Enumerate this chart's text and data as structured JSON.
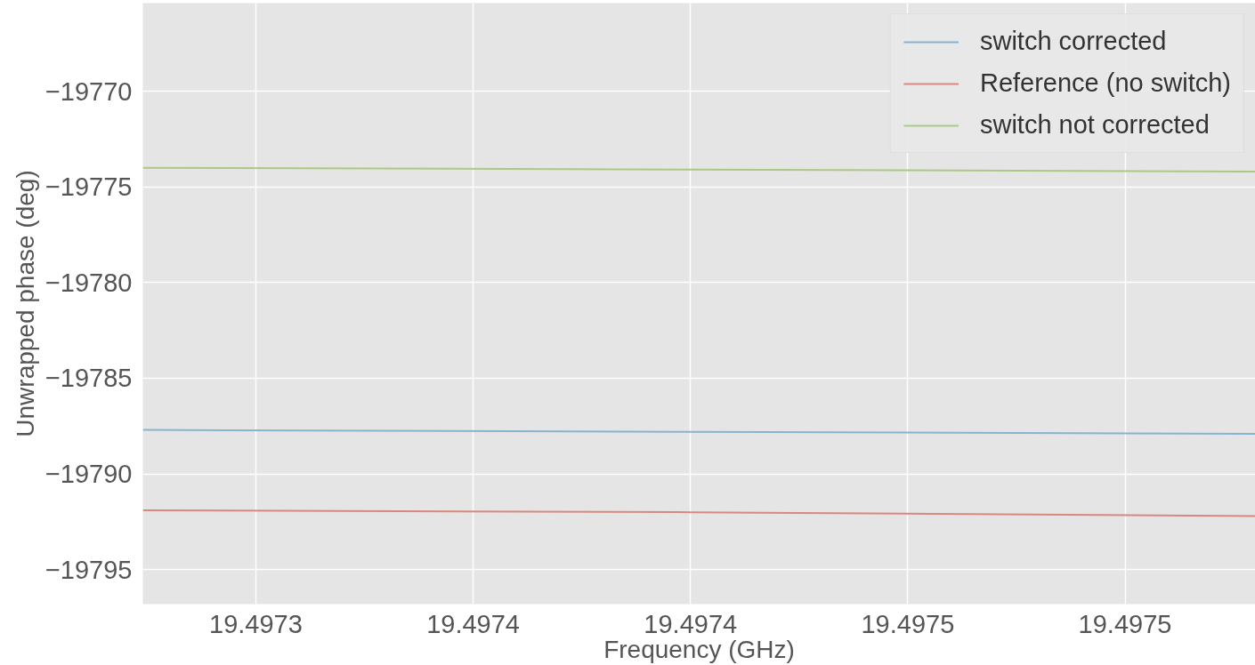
{
  "chart_data": {
    "type": "line",
    "xlabel": "Frequency (GHz)",
    "ylabel": "Unwrapped phase (deg)",
    "x": [
      19.497274,
      19.4974,
      19.49753
    ],
    "series": [
      {
        "name": "switch corrected",
        "color": "#88b3cf",
        "values": [
          -19787.7,
          -19787.8,
          -19787.9
        ]
      },
      {
        "name": "Reference (no switch)",
        "color": "#d9887e",
        "values": [
          -19791.9,
          -19792.0,
          -19792.2
        ]
      },
      {
        "name": "switch not corrected",
        "color": "#abc985",
        "values": [
          -19774.0,
          -19774.1,
          -19774.2
        ]
      }
    ],
    "xlim": [
      19.497274,
      19.49753
    ],
    "ylim": [
      -19796.8,
      -19765.4
    ],
    "xticks": [
      {
        "value": 19.4973,
        "label": "19.4973"
      },
      {
        "value": 19.49735,
        "label": "19.4974"
      },
      {
        "value": 19.4974,
        "label": "19.4974"
      },
      {
        "value": 19.49745,
        "label": "19.4975"
      },
      {
        "value": 19.4975,
        "label": "19.4975"
      }
    ],
    "yticks": [
      {
        "value": -19795,
        "label": "−19795"
      },
      {
        "value": -19790,
        "label": "−19790"
      },
      {
        "value": -19785,
        "label": "−19785"
      },
      {
        "value": -19780,
        "label": "−19780"
      },
      {
        "value": -19775,
        "label": "−19775"
      },
      {
        "value": -19770,
        "label": "−19770"
      }
    ],
    "grid": true,
    "legend": "top right",
    "line_style": "solid"
  }
}
